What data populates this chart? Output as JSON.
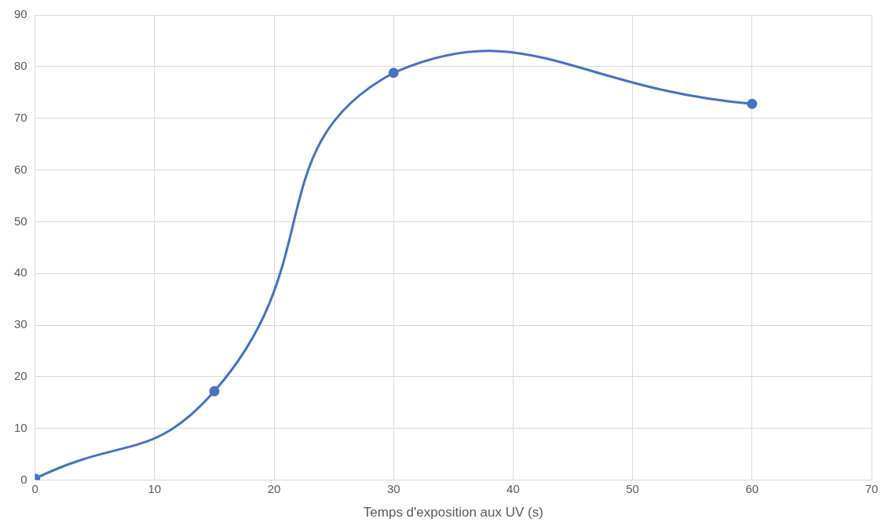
{
  "chart_data": {
    "type": "line",
    "xlabel": "Temps d'exposition aux UV (s)",
    "x": [
      0,
      15,
      30,
      60
    ],
    "series": [
      {
        "color": "#4472c4",
        "values": [
          0.3,
          17.2,
          78.8,
          72.8
        ]
      }
    ],
    "xlim": [
      0,
      70
    ],
    "xticks": [
      0,
      10,
      20,
      30,
      40,
      50,
      60,
      70
    ],
    "ylim": [
      0,
      90
    ],
    "yticks": [
      0,
      10,
      20,
      30,
      40,
      50,
      60,
      70,
      80,
      90
    ],
    "grid": true,
    "marker": "circle"
  }
}
